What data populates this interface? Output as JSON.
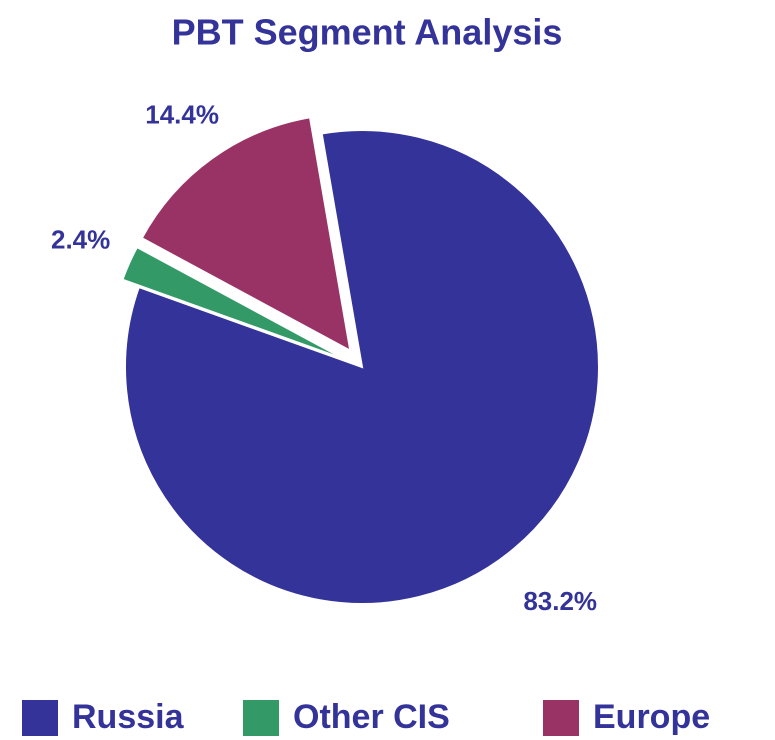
{
  "chart_data": {
    "type": "pie",
    "title": "PBT Segment Analysis",
    "categories": [
      "Russia",
      "Other CIS",
      "Europe"
    ],
    "values": [
      83.2,
      2.4,
      14.4
    ],
    "value_labels": [
      "83.2%",
      "2.4%",
      "14.4%"
    ],
    "colors": [
      "#333399",
      "#339966",
      "#993366"
    ]
  }
}
